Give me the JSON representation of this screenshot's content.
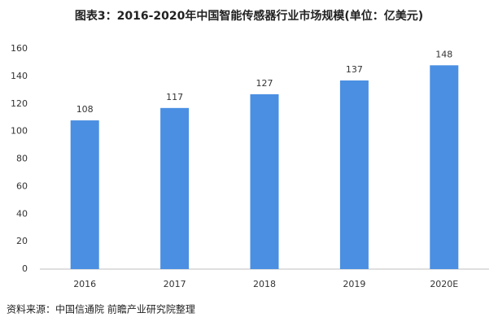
{
  "chart_data": {
    "type": "bar",
    "title": "图表3：2016-2020年中国智能传感器行业市场规模(单位：亿美元)",
    "categories": [
      "2016",
      "2017",
      "2018",
      "2019",
      "2020E"
    ],
    "values": [
      108,
      117,
      127,
      137,
      148
    ],
    "color": "#4a8fe2",
    "ylim": [
      0,
      160
    ],
    "yticks": [
      0,
      20,
      40,
      60,
      80,
      100,
      120,
      140,
      160
    ],
    "grid": false,
    "source": "资料来源：中国信通院 前瞻产业研究院整理"
  }
}
